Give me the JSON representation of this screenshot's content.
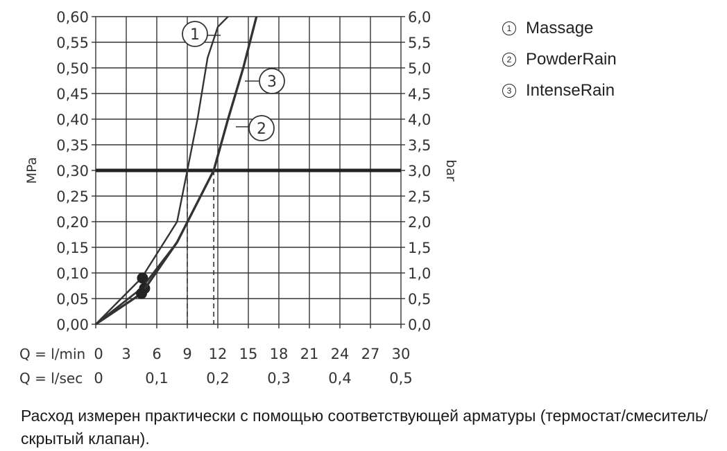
{
  "chart_data": {
    "type": "line",
    "xlabel_rows": [
      {
        "prefix": "Q = l/min",
        "ticks": [
          "0",
          "3",
          "6",
          "9",
          "12",
          "15",
          "18",
          "21",
          "24",
          "27",
          "30"
        ],
        "values": [
          0,
          3,
          6,
          9,
          12,
          15,
          18,
          21,
          24,
          27,
          30
        ]
      },
      {
        "prefix": "Q = l/sec",
        "ticks": [
          "0",
          "0,1",
          "0,2",
          "0,3",
          "0,4",
          "0,5"
        ],
        "values": [
          0,
          6,
          12,
          18,
          24,
          30
        ]
      }
    ],
    "ylabel_left": "MPa",
    "ylabel_right": "bar",
    "yticks_left": [
      "0,00",
      "0,05",
      "0,10",
      "0,15",
      "0,20",
      "0,25",
      "0,30",
      "0,35",
      "0,40",
      "0,45",
      "0,50",
      "0,55",
      "0,60"
    ],
    "yticks_right": [
      "0,0",
      "0,5",
      "1,0",
      "1,5",
      "2,0",
      "2,5",
      "3,0",
      "3,5",
      "4,0",
      "4,5",
      "5,0",
      "5,5",
      "6,0"
    ],
    "xlim": [
      0,
      30
    ],
    "ylim": [
      0,
      0.6
    ],
    "grid": true,
    "reference_line": {
      "y": 0.3
    },
    "reference_drops": [
      9.0,
      11.6
    ],
    "series": [
      {
        "name": "1",
        "x": [
          0,
          4.5,
          8,
          9,
          10,
          11,
          12,
          13
        ],
        "y": [
          0,
          0.09,
          0.2,
          0.3,
          0.4,
          0.52,
          0.58,
          0.6
        ],
        "min_point": {
          "x": 4.6,
          "y": 0.09
        }
      },
      {
        "name": "2",
        "x": [
          0,
          4.5,
          8,
          11.6,
          13,
          14.5,
          15.8
        ],
        "y": [
          0,
          0.07,
          0.16,
          0.3,
          0.4,
          0.5,
          0.6
        ],
        "min_point": {
          "x": 4.8,
          "y": 0.07
        }
      },
      {
        "name": "3",
        "x": [
          0,
          4.5,
          8,
          11.6,
          13,
          14.5,
          15.8
        ],
        "y": [
          0,
          0.06,
          0.16,
          0.3,
          0.4,
          0.5,
          0.6
        ],
        "min_point": {
          "x": 4.5,
          "y": 0.06
        }
      }
    ]
  },
  "legend": [
    {
      "num": "1",
      "label": "Massage"
    },
    {
      "num": "2",
      "label": "PowderRain"
    },
    {
      "num": "3",
      "label": "IntenseRain"
    }
  ],
  "note": "Расход измерен практически с помощью соответствующей арматуры (термостат/смеситель/скрытый клапан)."
}
